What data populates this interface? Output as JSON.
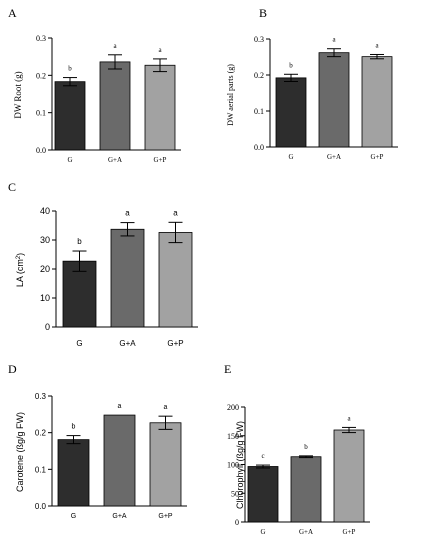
{
  "chart_data": [
    {
      "panel": "A",
      "type": "bar",
      "categories": [
        "G",
        "G+A",
        "G+P"
      ],
      "values": [
        0.183,
        0.236,
        0.227
      ],
      "errors": [
        0.011,
        0.019,
        0.017
      ],
      "letters": [
        "b",
        "a",
        "a"
      ],
      "ylabel": "DW Root (g)",
      "ylim": [
        0,
        0.3
      ],
      "yticks": [
        "0.0",
        "0.1",
        "0.2",
        "0.3"
      ],
      "colors": [
        "#2d2d2d",
        "#6a6a6a",
        "#a2a2a2"
      ]
    },
    {
      "panel": "B",
      "type": "bar",
      "categories": [
        "G",
        "G+A",
        "G+P"
      ],
      "values": [
        0.192,
        0.262,
        0.251
      ],
      "errors": [
        0.01,
        0.011,
        0.006
      ],
      "letters": [
        "b",
        "a",
        "a"
      ],
      "ylabel": "DW aerial parts (g)",
      "ylim": [
        0,
        0.3
      ],
      "yticks": [
        "0.0",
        "0.1",
        "0.2",
        "0.3"
      ],
      "colors": [
        "#2d2d2d",
        "#6a6a6a",
        "#a2a2a2"
      ]
    },
    {
      "panel": "C",
      "type": "bar",
      "categories": [
        "G",
        "G+A",
        "G+P"
      ],
      "values": [
        22.7,
        33.7,
        32.6
      ],
      "errors": [
        3.5,
        2.3,
        3.5
      ],
      "letters": [
        "b",
        "a",
        "a"
      ],
      "ylabel": "LA (cm²)",
      "ylim": [
        0,
        40
      ],
      "yticks": [
        "0",
        "10",
        "20",
        "30",
        "40"
      ],
      "colors": [
        "#2d2d2d",
        "#6a6a6a",
        "#a2a2a2"
      ]
    },
    {
      "panel": "D",
      "type": "bar",
      "categories": [
        "G",
        "G+A",
        "G+P"
      ],
      "values": [
        0.181,
        0.248,
        0.227
      ],
      "errors": [
        0.011,
        0.0,
        0.018
      ],
      "letters": [
        "b",
        "a",
        "a"
      ],
      "ylabel": "Carotene (ßg/g FW)",
      "ylim": [
        0,
        0.3
      ],
      "yticks": [
        "0.0",
        "0.1",
        "0.2",
        "0.3"
      ],
      "colors": [
        "#2d2d2d",
        "#6a6a6a",
        "#a2a2a2"
      ]
    },
    {
      "panel": "E",
      "type": "bar",
      "categories": [
        "G",
        "G+A",
        "G+P"
      ],
      "values": [
        96.5,
        113.5,
        160.0
      ],
      "errors": [
        2.5,
        1.5,
        4.5
      ],
      "letters": [
        "c",
        "b",
        "a"
      ],
      "ylabel": "Clhorophyll (ßg/g FW)",
      "ylim": [
        0,
        200
      ],
      "yticks": [
        "0",
        "50",
        "100",
        "150",
        "200"
      ],
      "colors": [
        "#2d2d2d",
        "#6a6a6a",
        "#a2a2a2"
      ]
    }
  ]
}
